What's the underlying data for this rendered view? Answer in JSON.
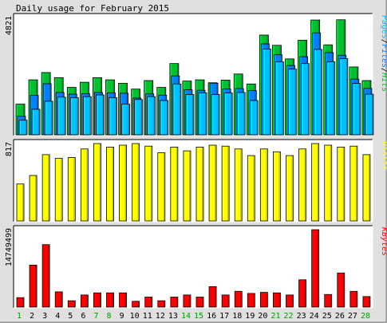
{
  "chart_data": [
    {
      "type": "bar",
      "title": "Daily usage for February 2015",
      "categories": [
        "1",
        "2",
        "3",
        "4",
        "5",
        "6",
        "7",
        "8",
        "9",
        "10",
        "11",
        "12",
        "13",
        "14",
        "15",
        "16",
        "17",
        "18",
        "19",
        "20",
        "21",
        "22",
        "23",
        "24",
        "25",
        "26",
        "27",
        "28"
      ],
      "weekend_days": [
        "1",
        "7",
        "8",
        "14",
        "15",
        "21",
        "22",
        "28"
      ],
      "ymax_label": "4821",
      "ylim": [
        0,
        4821
      ],
      "legend_right": [
        "Pages",
        "Files",
        "Hits"
      ],
      "series": [
        {
          "name": "Hits",
          "color": "#00C030",
          "values": [
            1260,
            2260,
            2560,
            2350,
            1950,
            2160,
            2350,
            2260,
            2120,
            1880,
            2230,
            1950,
            2930,
            2210,
            2260,
            2140,
            2250,
            2500,
            2090,
            4100,
            3680,
            3120,
            3890,
            4720,
            3700,
            4730,
            2790,
            2230
          ]
        },
        {
          "name": "Files",
          "color": "#0080FF",
          "values": [
            760,
            1620,
            2100,
            1740,
            1670,
            1690,
            1740,
            1720,
            1710,
            1510,
            1680,
            1630,
            2420,
            1850,
            1830,
            2120,
            1880,
            1900,
            1820,
            3740,
            3290,
            2850,
            3210,
            4190,
            3380,
            3270,
            2290,
            1910
          ]
        },
        {
          "name": "Pages",
          "color": "#00C0FF",
          "values": [
            600,
            1050,
            1380,
            1550,
            1530,
            1570,
            1640,
            1530,
            1260,
            1450,
            1570,
            1410,
            2090,
            1660,
            1730,
            1660,
            1720,
            1740,
            1410,
            3530,
            3000,
            2700,
            2930,
            3510,
            3000,
            3130,
            2110,
            1670
          ]
        }
      ]
    },
    {
      "type": "bar",
      "ymax_label": "817",
      "ylim": [
        0,
        817
      ],
      "legend_right": [
        "Visits"
      ],
      "series": [
        {
          "name": "Visits",
          "color": "#FFFF00",
          "values": [
            390,
            480,
            700,
            660,
            670,
            760,
            817,
            780,
            800,
            817,
            790,
            720,
            780,
            740,
            780,
            800,
            790,
            760,
            690,
            760,
            730,
            690,
            760,
            817,
            800,
            780,
            790,
            700
          ]
        }
      ]
    },
    {
      "type": "bar",
      "ymax_label": "14749499",
      "ylim": [
        0,
        14749499
      ],
      "legend_right": [
        "KBytes"
      ],
      "series": [
        {
          "name": "KBytes",
          "color": "#FF0000",
          "values": [
            1800000,
            8000000,
            11900000,
            2900000,
            1200000,
            2300000,
            2700000,
            2700000,
            2700000,
            1100000,
            1900000,
            1200000,
            1900000,
            2300000,
            1900000,
            3900000,
            2300000,
            3000000,
            2600000,
            2800000,
            2700000,
            2300000,
            5200000,
            14749499,
            2400000,
            6500000,
            3000000,
            2000000
          ]
        }
      ]
    }
  ]
}
